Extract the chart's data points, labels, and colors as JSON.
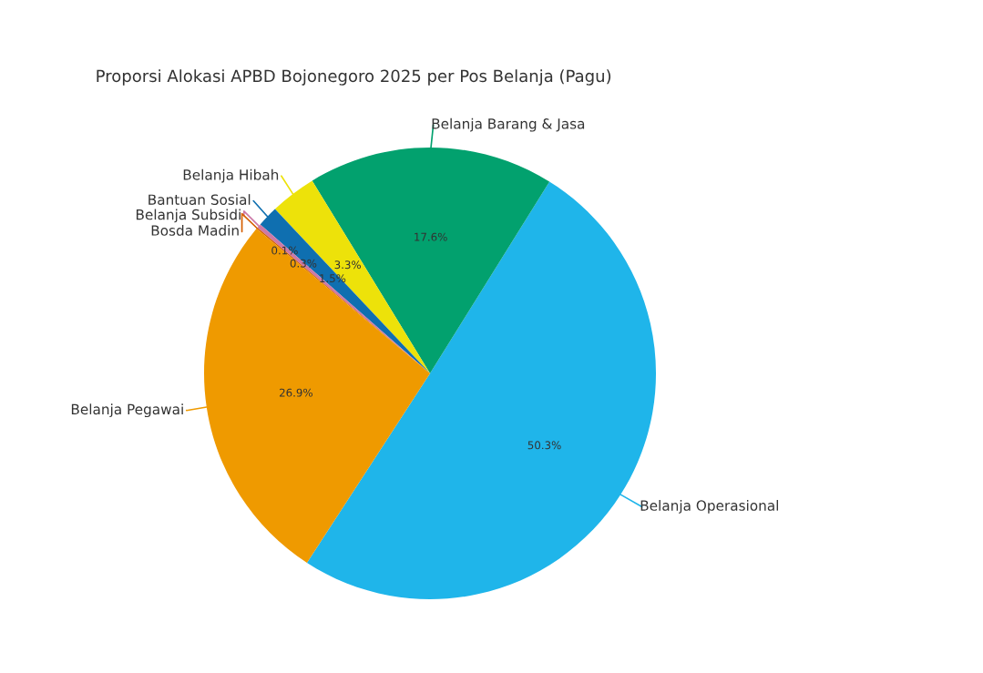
{
  "chart_data": {
    "type": "pie",
    "title": "Proporsi Alokasi APBD Bojonegoro 2025 per Pos Belanja (Pagu)",
    "categories": [
      "Belanja Operasional",
      "Belanja Barang & Jasa",
      "Belanja Hibah",
      "Bantuan Sosial",
      "Belanja Subsidi",
      "Bosda Madin",
      "Belanja Pegawai"
    ],
    "values": [
      50.3,
      17.6,
      3.3,
      1.5,
      0.3,
      0.1,
      26.9
    ],
    "colors": [
      "#1fb5ea",
      "#02a16e",
      "#ede20a",
      "#0f6fb0",
      "#cc79a7",
      "#d55e00",
      "#ef9a00"
    ],
    "data_labels": true,
    "value_labels": [
      "50.3%",
      "17.6%",
      "3.3%",
      "1.5%",
      "0.3%",
      "0.1%",
      "26.9%"
    ]
  }
}
